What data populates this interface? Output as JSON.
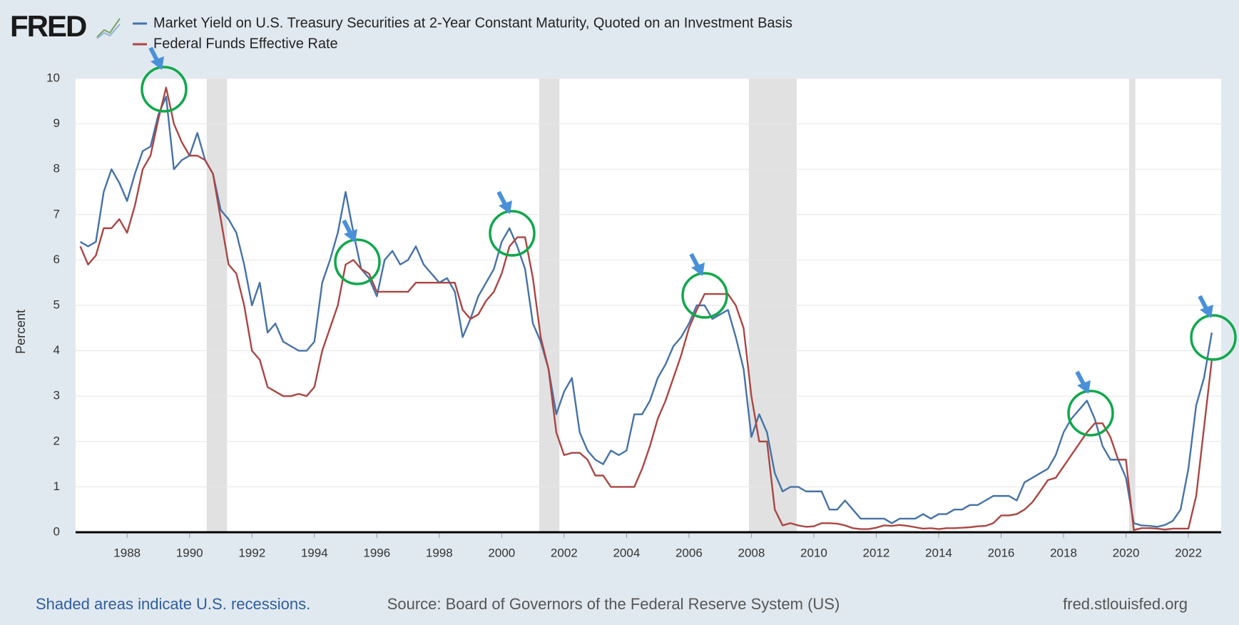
{
  "chart_data": {
    "type": "line",
    "logo": "FRED",
    "y_label": "Percent",
    "note": "Shaded areas indicate U.S. recessions.",
    "source": "Source: Board of Governors of the Federal Reserve System (US)",
    "site": "fred.stlouisfed.org",
    "xlim": [
      1986.35,
      2023.05
    ],
    "ylim": [
      0,
      10
    ],
    "xticks": [
      1988,
      1990,
      1992,
      1994,
      1996,
      1998,
      2000,
      2002,
      2004,
      2006,
      2008,
      2010,
      2012,
      2014,
      2016,
      2018,
      2020,
      2022
    ],
    "yticks": [
      0,
      1,
      2,
      3,
      4,
      5,
      6,
      7,
      8,
      9,
      10
    ],
    "grid": true,
    "recession_color": "#e1e1e1",
    "recessions": [
      [
        1990.55,
        1991.2
      ],
      [
        2001.2,
        2001.85
      ],
      [
        2007.92,
        2009.45
      ],
      [
        2020.1,
        2020.3
      ]
    ],
    "x": [
      1986.5,
      1986.75,
      1987,
      1987.25,
      1987.5,
      1987.75,
      1988,
      1988.25,
      1988.5,
      1988.75,
      1989,
      1989.25,
      1989.5,
      1989.75,
      1990,
      1990.25,
      1990.5,
      1990.75,
      1991,
      1991.25,
      1991.5,
      1991.75,
      1992,
      1992.25,
      1992.5,
      1992.75,
      1993,
      1993.25,
      1993.5,
      1993.75,
      1994,
      1994.25,
      1994.5,
      1994.75,
      1995,
      1995.25,
      1995.5,
      1995.75,
      1996,
      1996.25,
      1996.5,
      1996.75,
      1997,
      1997.25,
      1997.5,
      1997.75,
      1998,
      1998.25,
      1998.5,
      1998.75,
      1999,
      1999.25,
      1999.5,
      1999.75,
      2000,
      2000.25,
      2000.5,
      2000.75,
      2001,
      2001.25,
      2001.5,
      2001.75,
      2002,
      2002.25,
      2002.5,
      2002.75,
      2003,
      2003.25,
      2003.5,
      2003.75,
      2004,
      2004.25,
      2004.5,
      2004.75,
      2005,
      2005.25,
      2005.5,
      2005.75,
      2006,
      2006.25,
      2006.5,
      2006.75,
      2007,
      2007.25,
      2007.5,
      2007.75,
      2008,
      2008.25,
      2008.5,
      2008.75,
      2009,
      2009.25,
      2009.5,
      2009.75,
      2010,
      2010.25,
      2010.5,
      2010.75,
      2011,
      2011.25,
      2011.5,
      2011.75,
      2012,
      2012.25,
      2012.5,
      2012.75,
      2013,
      2013.25,
      2013.5,
      2013.75,
      2014,
      2014.25,
      2014.5,
      2014.75,
      2015,
      2015.25,
      2015.5,
      2015.75,
      2016,
      2016.25,
      2016.5,
      2016.75,
      2017,
      2017.25,
      2017.5,
      2017.75,
      2018,
      2018.25,
      2018.5,
      2018.75,
      2019,
      2019.25,
      2019.5,
      2019.75,
      2020,
      2020.25,
      2020.5,
      2020.75,
      2021,
      2021.25,
      2021.5,
      2021.75,
      2022,
      2022.25,
      2022.5,
      2022.75
    ],
    "series": [
      {
        "name": "Market Yield on U.S. Treasury Securities at 2-Year Constant Maturity, Quoted on an Investment Basis",
        "color": "#4572a7",
        "values": [
          6.4,
          6.3,
          6.4,
          7.5,
          8.0,
          7.7,
          7.3,
          7.9,
          8.4,
          8.5,
          9.2,
          9.6,
          8.0,
          8.2,
          8.3,
          8.8,
          8.2,
          7.9,
          7.1,
          6.9,
          6.6,
          5.9,
          5.0,
          5.5,
          4.4,
          4.6,
          4.2,
          4.1,
          4.0,
          4.0,
          4.2,
          5.5,
          6.0,
          6.6,
          7.5,
          6.6,
          5.8,
          5.6,
          5.2,
          6.0,
          6.2,
          5.9,
          6.0,
          6.3,
          5.9,
          5.7,
          5.5,
          5.6,
          5.3,
          4.3,
          4.7,
          5.2,
          5.5,
          5.8,
          6.4,
          6.7,
          6.3,
          5.8,
          4.6,
          4.2,
          3.6,
          2.6,
          3.1,
          3.4,
          2.2,
          1.8,
          1.6,
          1.5,
          1.8,
          1.7,
          1.8,
          2.6,
          2.6,
          2.9,
          3.4,
          3.7,
          4.1,
          4.3,
          4.6,
          5.0,
          5.0,
          4.7,
          4.8,
          4.9,
          4.3,
          3.6,
          2.1,
          2.6,
          2.2,
          1.3,
          0.9,
          1.0,
          1.0,
          0.9,
          0.9,
          0.9,
          0.5,
          0.5,
          0.7,
          0.5,
          0.3,
          0.3,
          0.3,
          0.3,
          0.2,
          0.3,
          0.3,
          0.3,
          0.4,
          0.3,
          0.4,
          0.4,
          0.5,
          0.5,
          0.6,
          0.6,
          0.7,
          0.8,
          0.8,
          0.8,
          0.7,
          1.1,
          1.2,
          1.3,
          1.4,
          1.7,
          2.2,
          2.5,
          2.7,
          2.9,
          2.5,
          1.9,
          1.6,
          1.6,
          1.2,
          0.2,
          0.15,
          0.14,
          0.12,
          0.16,
          0.25,
          0.5,
          1.4,
          2.8,
          3.4,
          4.4
        ]
      },
      {
        "name": "Federal Funds Effective Rate",
        "color": "#aa4643",
        "values": [
          6.3,
          5.9,
          6.1,
          6.7,
          6.7,
          6.9,
          6.6,
          7.2,
          8.0,
          8.3,
          9.1,
          9.8,
          9.0,
          8.6,
          8.3,
          8.3,
          8.2,
          7.9,
          6.9,
          5.9,
          5.7,
          5.0,
          4.0,
          3.8,
          3.2,
          3.1,
          3.0,
          3.0,
          3.05,
          3.0,
          3.2,
          4.0,
          4.5,
          5.0,
          5.9,
          6.0,
          5.8,
          5.7,
          5.3,
          5.3,
          5.3,
          5.3,
          5.3,
          5.5,
          5.5,
          5.5,
          5.5,
          5.5,
          5.5,
          4.9,
          4.7,
          4.8,
          5.1,
          5.3,
          5.7,
          6.3,
          6.5,
          6.5,
          5.6,
          4.3,
          3.6,
          2.2,
          1.7,
          1.75,
          1.75,
          1.6,
          1.25,
          1.25,
          1.0,
          1.0,
          1.0,
          1.0,
          1.4,
          1.9,
          2.5,
          2.9,
          3.4,
          3.9,
          4.5,
          4.9,
          5.25,
          5.25,
          5.25,
          5.25,
          5.0,
          4.5,
          3.0,
          2.0,
          2.0,
          0.5,
          0.15,
          0.2,
          0.15,
          0.12,
          0.13,
          0.2,
          0.2,
          0.19,
          0.15,
          0.09,
          0.07,
          0.07,
          0.1,
          0.15,
          0.14,
          0.16,
          0.14,
          0.11,
          0.08,
          0.09,
          0.07,
          0.09,
          0.09,
          0.1,
          0.11,
          0.13,
          0.14,
          0.2,
          0.37,
          0.37,
          0.4,
          0.5,
          0.66,
          0.9,
          1.15,
          1.2,
          1.45,
          1.7,
          1.95,
          2.2,
          2.4,
          2.4,
          2.1,
          1.6,
          1.6,
          0.05,
          0.09,
          0.09,
          0.08,
          0.06,
          0.08,
          0.08,
          0.08,
          0.8,
          2.3,
          3.8
        ]
      }
    ]
  }
}
